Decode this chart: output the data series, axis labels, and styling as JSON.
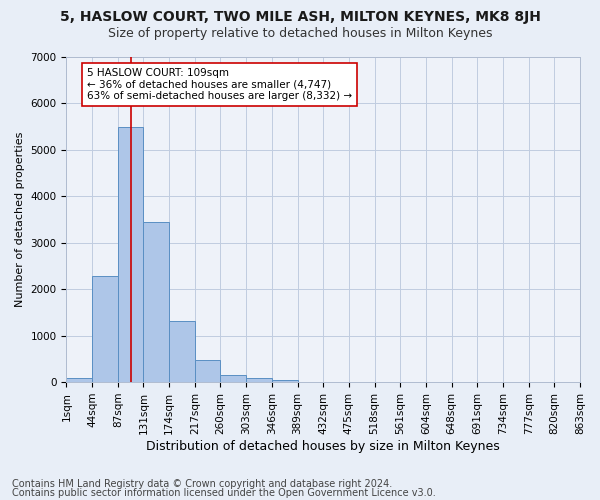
{
  "title1": "5, HASLOW COURT, TWO MILE ASH, MILTON KEYNES, MK8 8JH",
  "title2": "Size of property relative to detached houses in Milton Keynes",
  "xlabel": "Distribution of detached houses by size in Milton Keynes",
  "ylabel": "Number of detached properties",
  "footer1": "Contains HM Land Registry data © Crown copyright and database right 2024.",
  "footer2": "Contains public sector information licensed under the Open Government Licence v3.0.",
  "bin_labels": [
    "1sqm",
    "44sqm",
    "87sqm",
    "131sqm",
    "174sqm",
    "217sqm",
    "260sqm",
    "303sqm",
    "346sqm",
    "389sqm",
    "432sqm",
    "475sqm",
    "518sqm",
    "561sqm",
    "604sqm",
    "648sqm",
    "691sqm",
    "734sqm",
    "777sqm",
    "820sqm",
    "863sqm"
  ],
  "bar_values": [
    80,
    2280,
    5480,
    3440,
    1310,
    470,
    155,
    80,
    50,
    0,
    0,
    0,
    0,
    0,
    0,
    0,
    0,
    0,
    0,
    0
  ],
  "bar_color": "#aec6e8",
  "bar_edge_color": "#5a8fc3",
  "vline_color": "#cc0000",
  "annotation_text": "5 HASLOW COURT: 109sqm\n← 36% of detached houses are smaller (4,747)\n63% of semi-detached houses are larger (8,332) →",
  "annotation_box_color": "#ffffff",
  "annotation_box_edge": "#cc0000",
  "ylim": [
    0,
    7000
  ],
  "yticks": [
    0,
    1000,
    2000,
    3000,
    4000,
    5000,
    6000,
    7000
  ],
  "bg_color": "#e8eef7",
  "plot_bg_color": "#eef2f9",
  "title1_fontsize": 10,
  "title2_fontsize": 9,
  "xlabel_fontsize": 9,
  "ylabel_fontsize": 8,
  "tick_fontsize": 7.5,
  "footer_fontsize": 7,
  "annotation_fontsize": 7.5
}
